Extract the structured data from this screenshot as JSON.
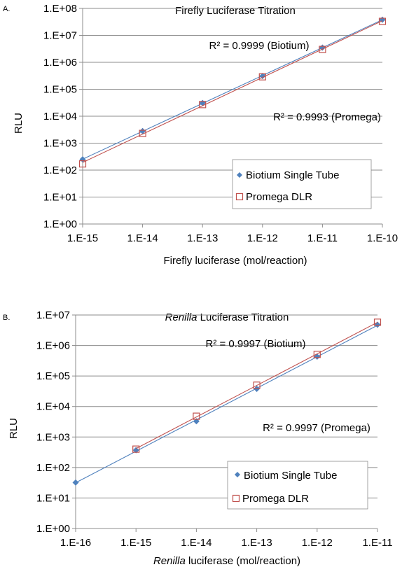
{
  "chart_data": [
    {
      "type": "scatter",
      "panel_label": "A.",
      "title": "Firefly Luciferase Titration",
      "title_italic": "",
      "title_rest": "",
      "xlabel": "Firefly luciferase (mol/reaction)",
      "xlabel_italic": "",
      "xlabel_rest": "",
      "ylabel": "RLU",
      "x_scale": "log",
      "y_scale": "log",
      "xlim": [
        1e-15,
        1e-10
      ],
      "ylim": [
        1,
        100000000
      ],
      "xticks": [
        "1.E-15",
        "1.E-14",
        "1.E-13",
        "1.E-12",
        "1.E-11",
        "1.E-10"
      ],
      "yticks": [
        "1.E+00",
        "1.E+01",
        "1.E+02",
        "1.E+03",
        "1.E+04",
        "1.E+05",
        "1.E+06",
        "1.E+07",
        "1.E+08"
      ],
      "grid": "horizontal",
      "legend_position": "lower-right",
      "series": [
        {
          "name": "Biotium Single Tube",
          "marker": "diamond",
          "color": "#4f81bd",
          "x": [
            1e-15,
            1e-14,
            1e-13,
            1e-12,
            1e-11,
            1e-10
          ],
          "y": [
            250,
            2800,
            31000,
            310000,
            3500000,
            38000000
          ]
        },
        {
          "name": "Promega DLR",
          "marker": "square-open",
          "color": "#c0504d",
          "x": [
            1e-15,
            1e-14,
            1e-13,
            1e-12,
            1e-11,
            1e-10
          ],
          "y": [
            170,
            2300,
            27000,
            290000,
            3000000,
            33000000
          ]
        }
      ],
      "annotations": [
        "R² = 0.9999 (Biotium)",
        "R² = 0.9993 (Promega)"
      ]
    },
    {
      "type": "scatter",
      "panel_label": "B.",
      "title": "",
      "title_italic": "Renilla",
      "title_rest": " Luciferase Titration",
      "xlabel": "",
      "xlabel_italic": "Renilla",
      "xlabel_rest": " luciferase (mol/reaction)",
      "ylabel": "RLU",
      "x_scale": "log",
      "y_scale": "log",
      "xlim": [
        1e-16,
        1e-11
      ],
      "ylim": [
        1,
        10000000
      ],
      "xticks": [
        "1.E-16",
        "1.E-15",
        "1.E-14",
        "1.E-13",
        "1.E-12",
        "1.E-11"
      ],
      "yticks": [
        "1.E+00",
        "1.E+01",
        "1.E+02",
        "1.E+03",
        "1.E+04",
        "1.E+05",
        "1.E+06",
        "1.E+07"
      ],
      "grid": "horizontal",
      "legend_position": "lower-right",
      "series": [
        {
          "name": "Biotium Single Tube",
          "marker": "diamond",
          "color": "#4f81bd",
          "x": [
            1e-16,
            1e-15,
            1e-14,
            1e-13,
            1e-12,
            1e-11
          ],
          "y": [
            32,
            370,
            3300,
            38000,
            430000,
            4800000
          ]
        },
        {
          "name": "Promega DLR",
          "marker": "square-open",
          "color": "#c0504d",
          "x": [
            1e-15,
            1e-14,
            1e-13,
            1e-12,
            1e-11
          ],
          "y": [
            400,
            4800,
            50000,
            510000,
            5800000
          ]
        }
      ],
      "annotations": [
        "R² = 0.9997 (Biotium)",
        "R² = 0.9997 (Promega)"
      ]
    }
  ]
}
